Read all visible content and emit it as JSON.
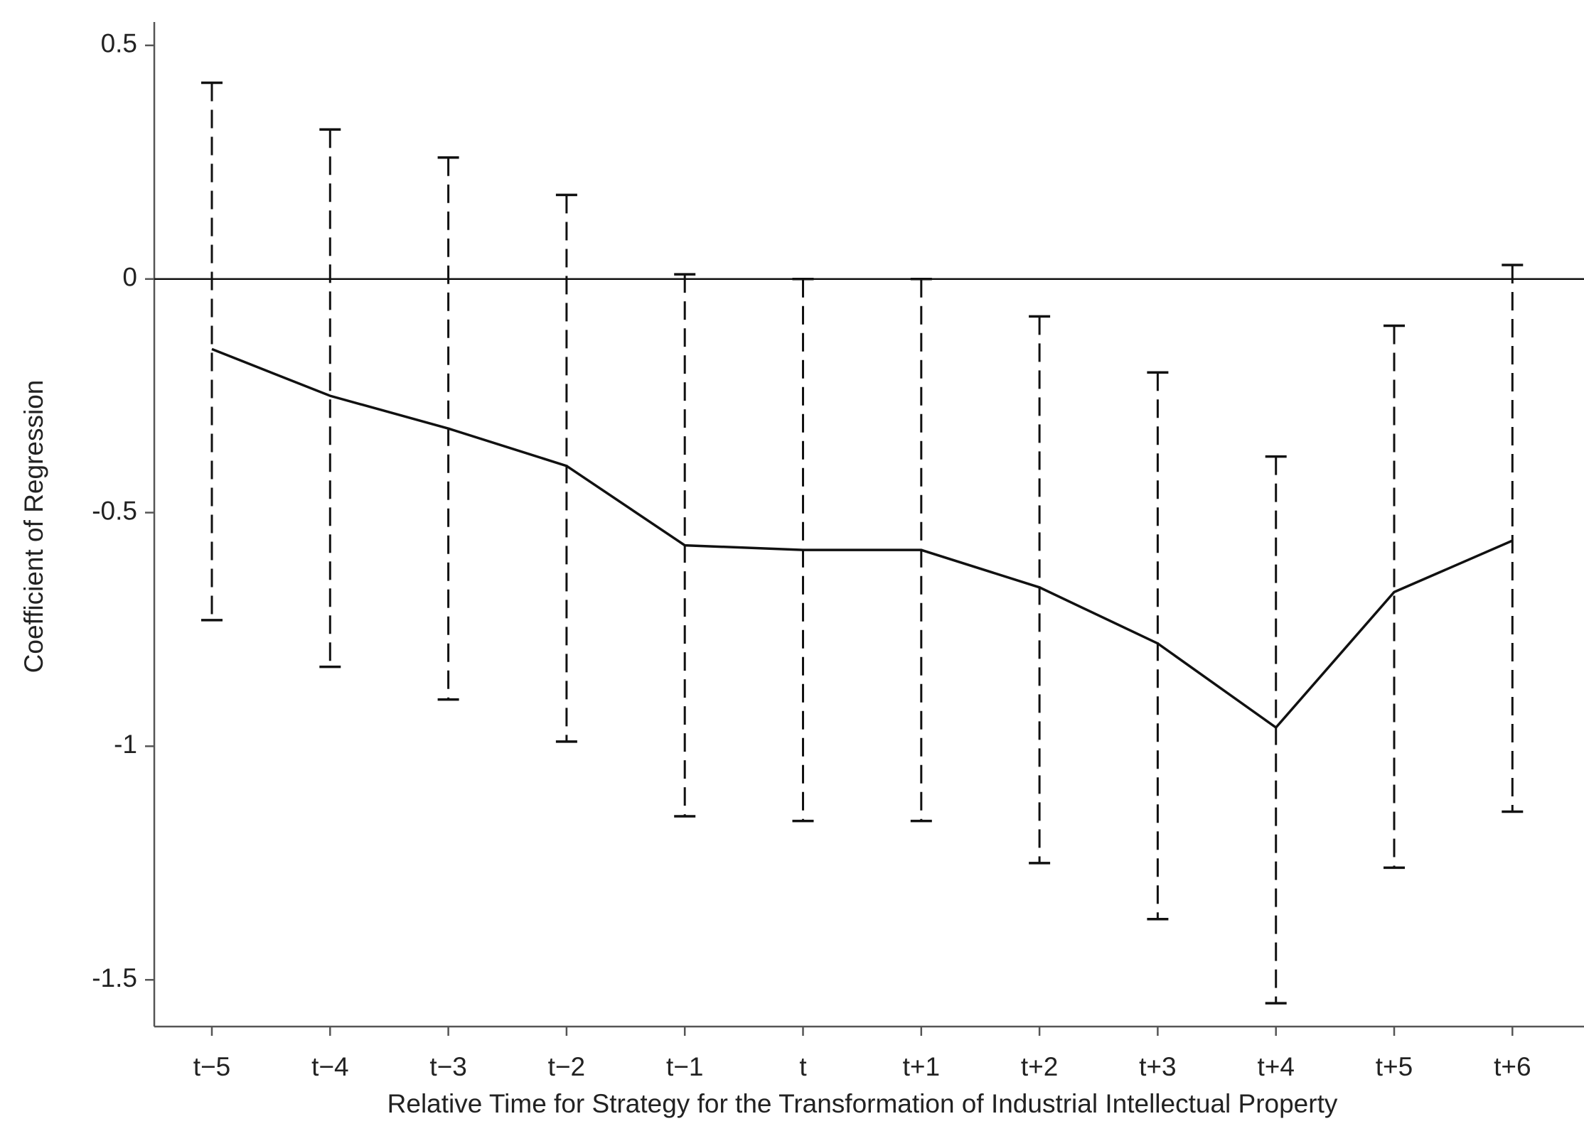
{
  "chart_data": {
    "type": "errorbar_line",
    "x_label": "Relative Time for Strategy for the Transformation of Industrial Intellectual Property",
    "y_label": "Coefficient of Regression",
    "categories": [
      "t−5",
      "t−4",
      "t−3",
      "t−2",
      "t−1",
      "t",
      "t+1",
      "t+2",
      "t+3",
      "t+4",
      "t+5",
      "t+6"
    ],
    "values": [
      -0.15,
      -0.25,
      -0.32,
      -0.4,
      -0.57,
      -0.58,
      -0.58,
      -0.66,
      -0.78,
      -0.96,
      -0.67,
      -0.56
    ],
    "lower": [
      -0.73,
      -0.83,
      -0.9,
      -0.99,
      -1.15,
      -1.16,
      -1.16,
      -1.25,
      -1.37,
      -1.55,
      -1.26,
      -1.14
    ],
    "upper": [
      0.42,
      0.32,
      0.26,
      0.18,
      0.01,
      0.0,
      0.0,
      -0.08,
      -0.2,
      -0.38,
      -0.1,
      0.03
    ],
    "color": "#111111",
    "reference_line": 0,
    "ylim": [
      -1.6,
      0.55
    ],
    "yticks": [
      0.5,
      0,
      -0.5,
      -1,
      -1.5
    ]
  }
}
